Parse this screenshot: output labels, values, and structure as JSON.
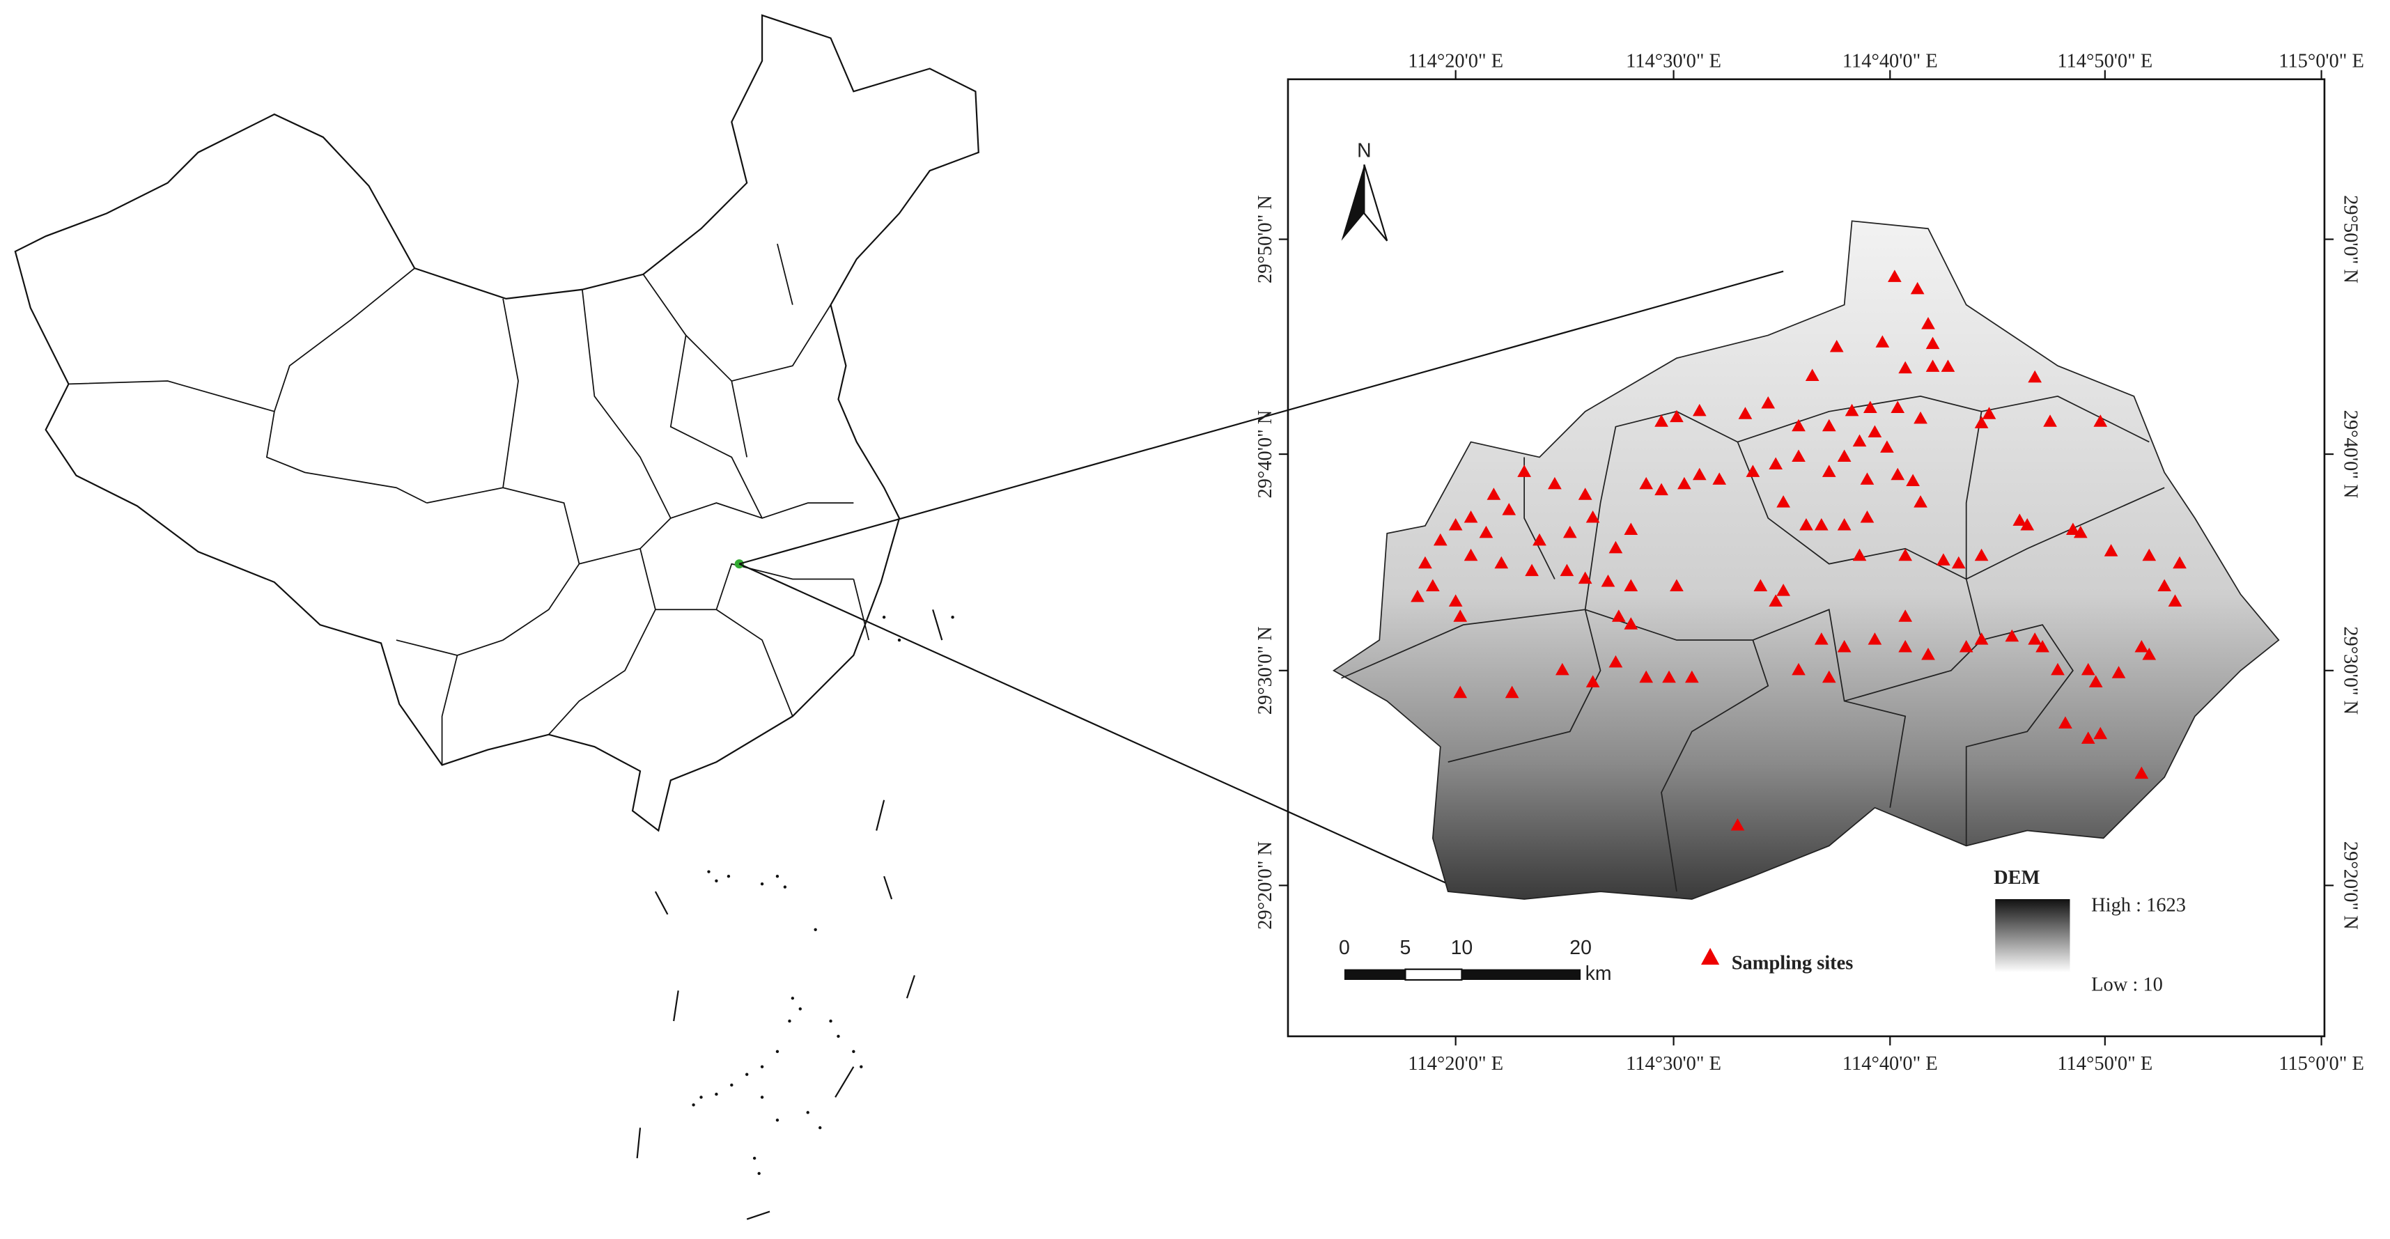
{
  "map": {
    "top_lon_labels": [
      "114°20'0\" E",
      "114°30'0\" E",
      "114°40'0\" E",
      "114°50'0\" E",
      "115°0'0\" E"
    ],
    "bottom_lon_labels": [
      "114°20'0\" E",
      "114°30'0\" E",
      "114°40'0\" E",
      "114°50'0\" E",
      "115°0'0\" E"
    ],
    "left_lat_labels": [
      "29°50'0\" N",
      "29°40'0\" N",
      "29°30'0\" N",
      "29°20'0\" N"
    ],
    "right_lat_labels": [
      "29°50'0\" N",
      "29°40'0\" N",
      "29°30'0\" N",
      "29°20'0\" N"
    ],
    "north": "N",
    "legend": {
      "sites": "Sampling sites",
      "dem_title": "DEM",
      "dem_high": "High : 1623",
      "dem_low": "Low : 10"
    },
    "scale_bar": {
      "labels": [
        "0",
        "5",
        "10",
        "20"
      ],
      "unit": "km"
    }
  }
}
